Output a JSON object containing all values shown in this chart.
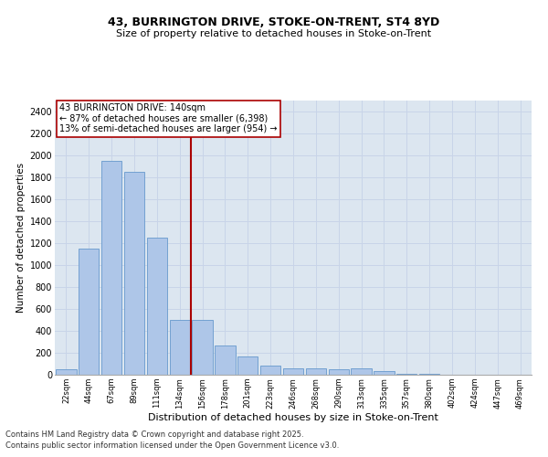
{
  "title_line1": "43, BURRINGTON DRIVE, STOKE-ON-TRENT, ST4 8YD",
  "title_line2": "Size of property relative to detached houses in Stoke-on-Trent",
  "xlabel": "Distribution of detached houses by size in Stoke-on-Trent",
  "ylabel": "Number of detached properties",
  "categories": [
    "22sqm",
    "44sqm",
    "67sqm",
    "89sqm",
    "111sqm",
    "134sqm",
    "156sqm",
    "178sqm",
    "201sqm",
    "223sqm",
    "246sqm",
    "268sqm",
    "290sqm",
    "313sqm",
    "335sqm",
    "357sqm",
    "380sqm",
    "402sqm",
    "424sqm",
    "447sqm",
    "469sqm"
  ],
  "values": [
    50,
    1150,
    1950,
    1850,
    1250,
    500,
    500,
    270,
    165,
    80,
    60,
    55,
    50,
    55,
    35,
    10,
    5,
    3,
    2,
    1,
    1
  ],
  "bar_color": "#aec6e8",
  "bar_edgecolor": "#6699cc",
  "vline_color": "#aa0000",
  "vline_x_index": 5.5,
  "annotation_text": "43 BURRINGTON DRIVE: 140sqm\n← 87% of detached houses are smaller (6,398)\n13% of semi-detached houses are larger (954) →",
  "annotation_box_facecolor": "#ffffff",
  "annotation_box_edgecolor": "#aa0000",
  "ylim": [
    0,
    2500
  ],
  "yticks": [
    0,
    200,
    400,
    600,
    800,
    1000,
    1200,
    1400,
    1600,
    1800,
    2000,
    2200,
    2400
  ],
  "grid_color": "#c8d4e8",
  "bg_color": "#dce6f0",
  "title1_fontsize": 9,
  "title2_fontsize": 8,
  "xlabel_fontsize": 8,
  "ylabel_fontsize": 7.5,
  "xtick_fontsize": 6,
  "ytick_fontsize": 7,
  "annot_fontsize": 7,
  "footer_fontsize": 6,
  "footer_line1": "Contains HM Land Registry data © Crown copyright and database right 2025.",
  "footer_line2": "Contains public sector information licensed under the Open Government Licence v3.0."
}
